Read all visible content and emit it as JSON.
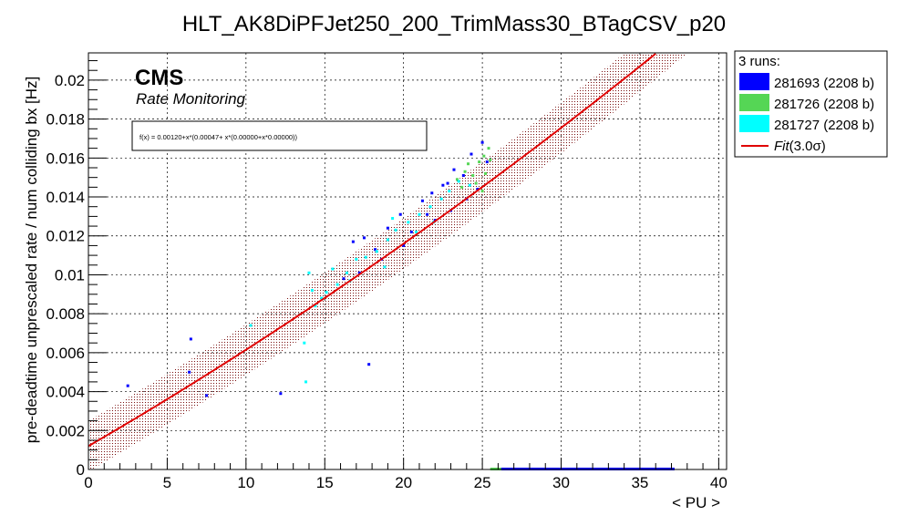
{
  "chart_data": {
    "type": "scatter",
    "title": "HLT_AK8DiPFJet250_200_TrimMass30_BTagCSV_p20",
    "xlabel": "< PU >",
    "ylabel": "pre-deadtime unprescaled rate / num colliding bx [Hz]",
    "xlim": [
      0,
      40.5
    ],
    "ylim": [
      0,
      0.0214
    ],
    "x_ticks": [
      "0",
      "5",
      "10",
      "15",
      "20",
      "25",
      "30",
      "35",
      "40"
    ],
    "y_ticks": [
      "0",
      "0.002",
      "0.004",
      "0.006",
      "0.008",
      "0.01",
      "0.012",
      "0.014",
      "0.016",
      "0.018",
      "0.02"
    ],
    "grid": true,
    "cms_label": "CMS",
    "cms_sublabel": "Rate Monitoring",
    "fit_formula": "f(x) = 0.00120+x*(0.00047+ x*(0.00000+x*0.00000))",
    "fit": {
      "name": "Fit(3.0σ)",
      "color": "#e00000",
      "p0": 0.0012,
      "p1": 0.00047,
      "p2": 2.5e-06,
      "band": 0.0013
    },
    "legend": {
      "header": "3 runs:",
      "position": "right",
      "entries": [
        {
          "label": "281693 (2208 b)",
          "color": "#0000ff",
          "kind": "box"
        },
        {
          "label": "281726 (2208 b)",
          "color": "#55d655",
          "kind": "box"
        },
        {
          "label": "281727 (2208 b)",
          "color": "#00ffff",
          "kind": "box"
        },
        {
          "label_italic": "Fit",
          "label_rest": "(3.0σ)",
          "color": "#e00000",
          "kind": "line"
        }
      ]
    },
    "series": [
      {
        "name": "281693 (2208 b)",
        "color": "#0000ff",
        "points": [
          [
            2.5,
            0.0043
          ],
          [
            6.5,
            0.0067
          ],
          [
            6.4,
            0.005
          ],
          [
            7.5,
            0.0038
          ],
          [
            12.2,
            0.0039
          ],
          [
            17.8,
            0.0054
          ],
          [
            16.8,
            0.0117
          ],
          [
            17.5,
            0.0119
          ],
          [
            18.2,
            0.0113
          ],
          [
            19.0,
            0.0124
          ],
          [
            19.8,
            0.0131
          ],
          [
            20.5,
            0.0122
          ],
          [
            21.2,
            0.0138
          ],
          [
            21.8,
            0.0142
          ],
          [
            22.5,
            0.0146
          ],
          [
            23.2,
            0.0154
          ],
          [
            23.8,
            0.0151
          ],
          [
            24.3,
            0.0162
          ],
          [
            24.7,
            0.0144
          ],
          [
            25.0,
            0.0168
          ],
          [
            25.3,
            0.0158
          ],
          [
            22.0,
            0.0128
          ],
          [
            20.0,
            0.0115
          ],
          [
            18.6,
            0.0108
          ],
          [
            17.2,
            0.0101
          ],
          [
            16.2,
            0.0098
          ],
          [
            23.0,
            0.0133
          ],
          [
            24.0,
            0.0139
          ],
          [
            22.8,
            0.0147
          ],
          [
            21.5,
            0.0131
          ]
        ],
        "floor_range": [
          25.6,
          37.2
        ]
      },
      {
        "name": "281726 (2208 b)",
        "color": "#55d655",
        "points": [
          [
            23.4,
            0.0149
          ],
          [
            23.9,
            0.0153
          ],
          [
            24.4,
            0.0151
          ],
          [
            24.8,
            0.0158
          ],
          [
            25.1,
            0.0161
          ],
          [
            25.4,
            0.0165
          ],
          [
            24.6,
            0.0147
          ],
          [
            25.2,
            0.0152
          ],
          [
            23.7,
            0.0145
          ],
          [
            24.1,
            0.0157
          ],
          [
            25.0,
            0.0143
          ],
          [
            25.5,
            0.0159
          ]
        ],
        "floor_range": [
          25.5,
          26.2
        ]
      },
      {
        "name": "281727 (2208 b)",
        "color": "#00ffff",
        "points": [
          [
            10.3,
            0.0074
          ],
          [
            13.7,
            0.0065
          ],
          [
            13.8,
            0.0045
          ],
          [
            14.0,
            0.0101
          ],
          [
            14.4,
            0.0084
          ],
          [
            15.1,
            0.0091
          ],
          [
            15.8,
            0.0095
          ],
          [
            16.4,
            0.0101
          ],
          [
            17.0,
            0.0108
          ],
          [
            17.6,
            0.0109
          ],
          [
            18.3,
            0.0112
          ],
          [
            19.0,
            0.0118
          ],
          [
            19.5,
            0.0123
          ],
          [
            20.3,
            0.0127
          ],
          [
            21.0,
            0.0131
          ],
          [
            21.7,
            0.0135
          ],
          [
            22.4,
            0.0139
          ],
          [
            22.9,
            0.0143
          ],
          [
            23.5,
            0.0148
          ],
          [
            24.2,
            0.0146
          ],
          [
            19.3,
            0.0129
          ],
          [
            20.8,
            0.0122
          ],
          [
            14.8,
            0.0088
          ],
          [
            16.6,
            0.0097
          ],
          [
            18.8,
            0.0104
          ],
          [
            14.2,
            0.0092
          ],
          [
            15.5,
            0.0103
          ],
          [
            21.9,
            0.0127
          ]
        ]
      }
    ]
  }
}
